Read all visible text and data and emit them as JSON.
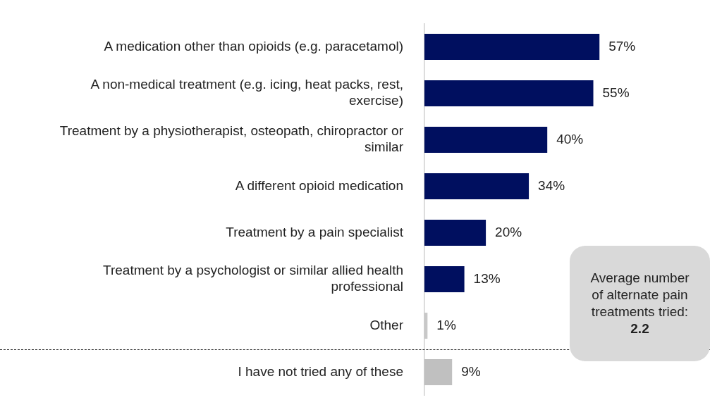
{
  "chart_data": {
    "type": "bar",
    "orientation": "horizontal",
    "categories": [
      "A medication other than opioids (e.g. paracetamol)",
      "A non-medical treatment (e.g. icing, heat packs, rest, exercise)",
      "Treatment by a physiotherapist, osteopath, chiropractor or similar",
      "A different opioid medication",
      "Treatment by a pain specialist",
      "Treatment by a psychologist or similar allied health professional",
      "Other",
      "I have not tried any of these"
    ],
    "values": [
      57,
      55,
      40,
      34,
      20,
      13,
      1,
      9
    ],
    "colors": [
      "#000f5f",
      "#000f5f",
      "#000f5f",
      "#000f5f",
      "#000f5f",
      "#000f5f",
      "#c8c8c8",
      "#c0c0c0"
    ],
    "value_labels": [
      "57%",
      "55%",
      "40%",
      "34%",
      "20%",
      "13%",
      "1%",
      "9%"
    ],
    "xlim": [
      0,
      93
    ],
    "legend": false,
    "tick_labels": "y",
    "annotations": [
      "Average number of alternate pain treatments tried: 2.2"
    ]
  }
}
